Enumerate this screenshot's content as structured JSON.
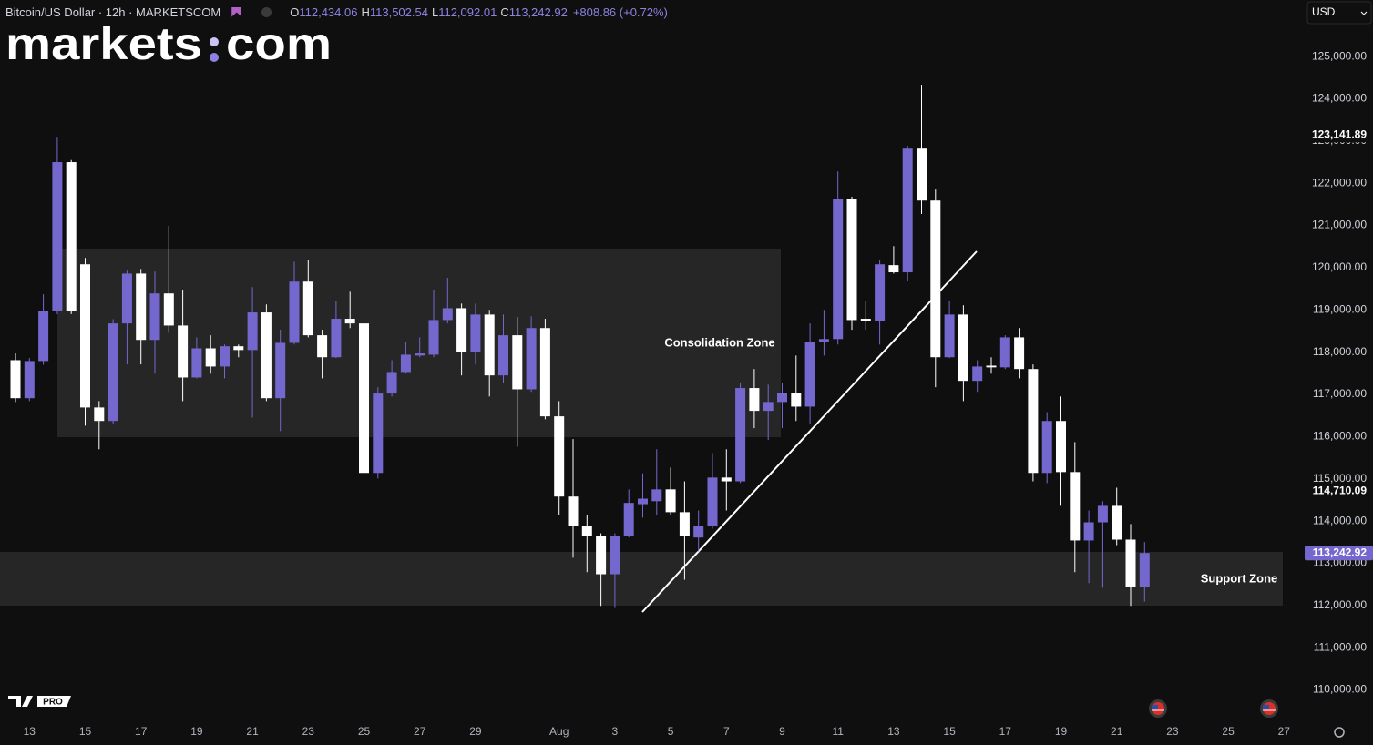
{
  "header": {
    "symbol": "Bitcoin/US Dollar · 12h · MARKETSCOM",
    "ohlc": [
      {
        "key": "O",
        "value": "112,434.06"
      },
      {
        "key": "H",
        "value": "113,502.54"
      },
      {
        "key": "L",
        "value": "112,092.01"
      },
      {
        "key": "C",
        "value": "113,242.92"
      }
    ],
    "change": "+808.86 (+0.72%)",
    "logo": [
      "markets",
      "com"
    ],
    "badge": "PRO",
    "currency": "USD"
  },
  "chart_data": {
    "type": "candlestick",
    "categories": [
      null,
      "13",
      null,
      null,
      null,
      "15",
      null,
      null,
      null,
      "17",
      null,
      null,
      null,
      "19",
      null,
      null,
      null,
      "21",
      null,
      null,
      null,
      "23",
      null,
      null,
      null,
      "25",
      null,
      null,
      null,
      "27",
      null,
      null,
      null,
      "29",
      null,
      null,
      null,
      null,
      null,
      "Aug",
      null,
      null,
      null,
      "3",
      null,
      null,
      null,
      "5",
      null,
      null,
      null,
      "7",
      null,
      null,
      null,
      "9",
      null,
      null,
      null,
      "11",
      null,
      null,
      null,
      "13",
      null,
      null,
      null,
      "15",
      null,
      null,
      null,
      "17",
      null,
      null,
      null,
      "19",
      null,
      null,
      null,
      "21",
      null,
      null,
      null,
      "23",
      null,
      null,
      null,
      "25",
      null,
      null,
      null,
      "27"
    ],
    "open": [
      117810,
      116910,
      117790,
      118980,
      122500,
      120080,
      116690,
      116370,
      118680,
      119860,
      118290,
      119390,
      118630,
      117400,
      118090,
      117660,
      118140,
      118050,
      118940,
      116910,
      118220,
      119670,
      118400,
      117880,
      118790,
      118680,
      115140,
      117020,
      117530,
      117920,
      117940,
      118760,
      119040,
      118010,
      118890,
      117450,
      118400,
      117120,
      118570,
      116480,
      114580,
      113890,
      113650,
      112740,
      113650,
      114400,
      114470,
      114750,
      114210,
      113610,
      113890,
      115030,
      114940,
      117150,
      116610,
      116820,
      117040,
      116710,
      118250,
      118310,
      121630,
      118790,
      118740,
      120060,
      119890,
      122820,
      121590,
      117880,
      118890,
      117320,
      117680,
      117640,
      118350,
      117600,
      115140,
      116370,
      115160,
      113540,
      113970,
      114360,
      113560,
      112434.06,
      null,
      null,
      null,
      null,
      null,
      null,
      null,
      null,
      null,
      null
    ],
    "high": [
      117970,
      117860,
      119370,
      123100,
      122550,
      120230,
      116840,
      118780,
      119930,
      119970,
      119910,
      120990,
      119480,
      118350,
      118400,
      118180,
      118180,
      119540,
      119130,
      118530,
      120140,
      120190,
      118530,
      119220,
      119430,
      118790,
      117170,
      117810,
      118250,
      118350,
      119480,
      119760,
      119150,
      119150,
      119000,
      118890,
      118830,
      118850,
      118790,
      116840,
      115940,
      114150,
      113710,
      113710,
      114750,
      115130,
      115700,
      115270,
      114940,
      114250,
      115610,
      115700,
      117270,
      117600,
      117230,
      117270,
      117920,
      118680,
      119000,
      122280,
      121680,
      119220,
      120190,
      120510,
      122890,
      124330,
      121850,
      119220,
      119110,
      117810,
      117880,
      118400,
      118570,
      117710,
      116580,
      116950,
      115870,
      114250,
      114470,
      114790,
      113930,
      113502.54,
      null,
      null,
      null,
      null,
      null,
      null,
      null,
      null,
      null,
      null
    ],
    "low": [
      116820,
      116840,
      117700,
      118900,
      118900,
      116260,
      115700,
      116300,
      117710,
      117710,
      117490,
      118460,
      116840,
      117380,
      117490,
      117380,
      117880,
      116450,
      116840,
      116130,
      118180,
      118350,
      117380,
      117860,
      118570,
      114690,
      115010,
      116950,
      117490,
      117880,
      117880,
      118680,
      117450,
      117710,
      116950,
      117270,
      115760,
      117060,
      116410,
      114150,
      113130,
      112790,
      111990,
      111940,
      113610,
      114080,
      114150,
      114150,
      112610,
      113280,
      113820,
      114250,
      114900,
      116200,
      115920,
      116200,
      116370,
      116300,
      117920,
      118180,
      118530,
      118530,
      118180,
      119860,
      119690,
      121270,
      117170,
      117860,
      116840,
      117060,
      117490,
      117600,
      117380,
      114940,
      114900,
      114360,
      112790,
      112530,
      112420,
      113430,
      111990,
      112092.01,
      null,
      null,
      null,
      null,
      null,
      null,
      null,
      null,
      null,
      null
    ],
    "close": [
      116910,
      117790,
      118980,
      122500,
      118980,
      116690,
      116370,
      118680,
      119860,
      118290,
      119390,
      118630,
      117400,
      118090,
      117660,
      118140,
      118050,
      118940,
      116910,
      118220,
      119670,
      118400,
      117880,
      118790,
      118680,
      115140,
      117020,
      117530,
      117940,
      117970,
      118760,
      119040,
      118010,
      118890,
      117450,
      118400,
      117120,
      118570,
      116480,
      114580,
      113890,
      113650,
      112740,
      113650,
      114430,
      114530,
      114750,
      114210,
      113650,
      113890,
      115030,
      114940,
      117150,
      116610,
      116820,
      117040,
      116710,
      118250,
      118310,
      121630,
      118760,
      118740,
      120080,
      119890,
      122820,
      121590,
      117880,
      118890,
      117320,
      117660,
      117640,
      118350,
      117600,
      115140,
      116370,
      115160,
      113540,
      113970,
      114360,
      113560,
      112430,
      113242.92,
      null,
      null,
      null,
      null,
      null,
      null,
      null,
      null,
      null,
      null
    ],
    "up_color": "#7468cf",
    "down_color": "#ffffff",
    "ylim": [
      109300,
      126340
    ],
    "yticks": [
      {
        "value": 110000,
        "label": "110,000.00"
      },
      {
        "value": 111000,
        "label": "111,000.00"
      },
      {
        "value": 112000,
        "label": "112,000.00"
      },
      {
        "value": 113000,
        "label": "113,000.00"
      },
      {
        "value": 114000,
        "label": "114,000.00"
      },
      {
        "value": 115000,
        "label": "115,000.00"
      },
      {
        "value": 116000,
        "label": "116,000.00"
      },
      {
        "value": 117000,
        "label": "117,000.00"
      },
      {
        "value": 118000,
        "label": "118,000.00"
      },
      {
        "value": 119000,
        "label": "119,000.00"
      },
      {
        "value": 120000,
        "label": "120,000.00"
      },
      {
        "value": 121000,
        "label": "121,000.00"
      },
      {
        "value": 122000,
        "label": "122,000.00"
      },
      {
        "value": 123000,
        "label": "123,000.00"
      },
      {
        "value": 124000,
        "label": "124,000.00"
      },
      {
        "value": 125000,
        "label": "125,000.00"
      }
    ],
    "grid": false,
    "price_markers": [
      {
        "value": 123141.89,
        "label": "123,141.89",
        "highlight": false
      },
      {
        "value": 114710.09,
        "label": "114,710.09",
        "highlight": false
      },
      {
        "value": 113242.92,
        "label": "113,242.92",
        "highlight": true
      }
    ],
    "annotations": [
      "Consolidation Zone",
      "Support Zone"
    ]
  }
}
